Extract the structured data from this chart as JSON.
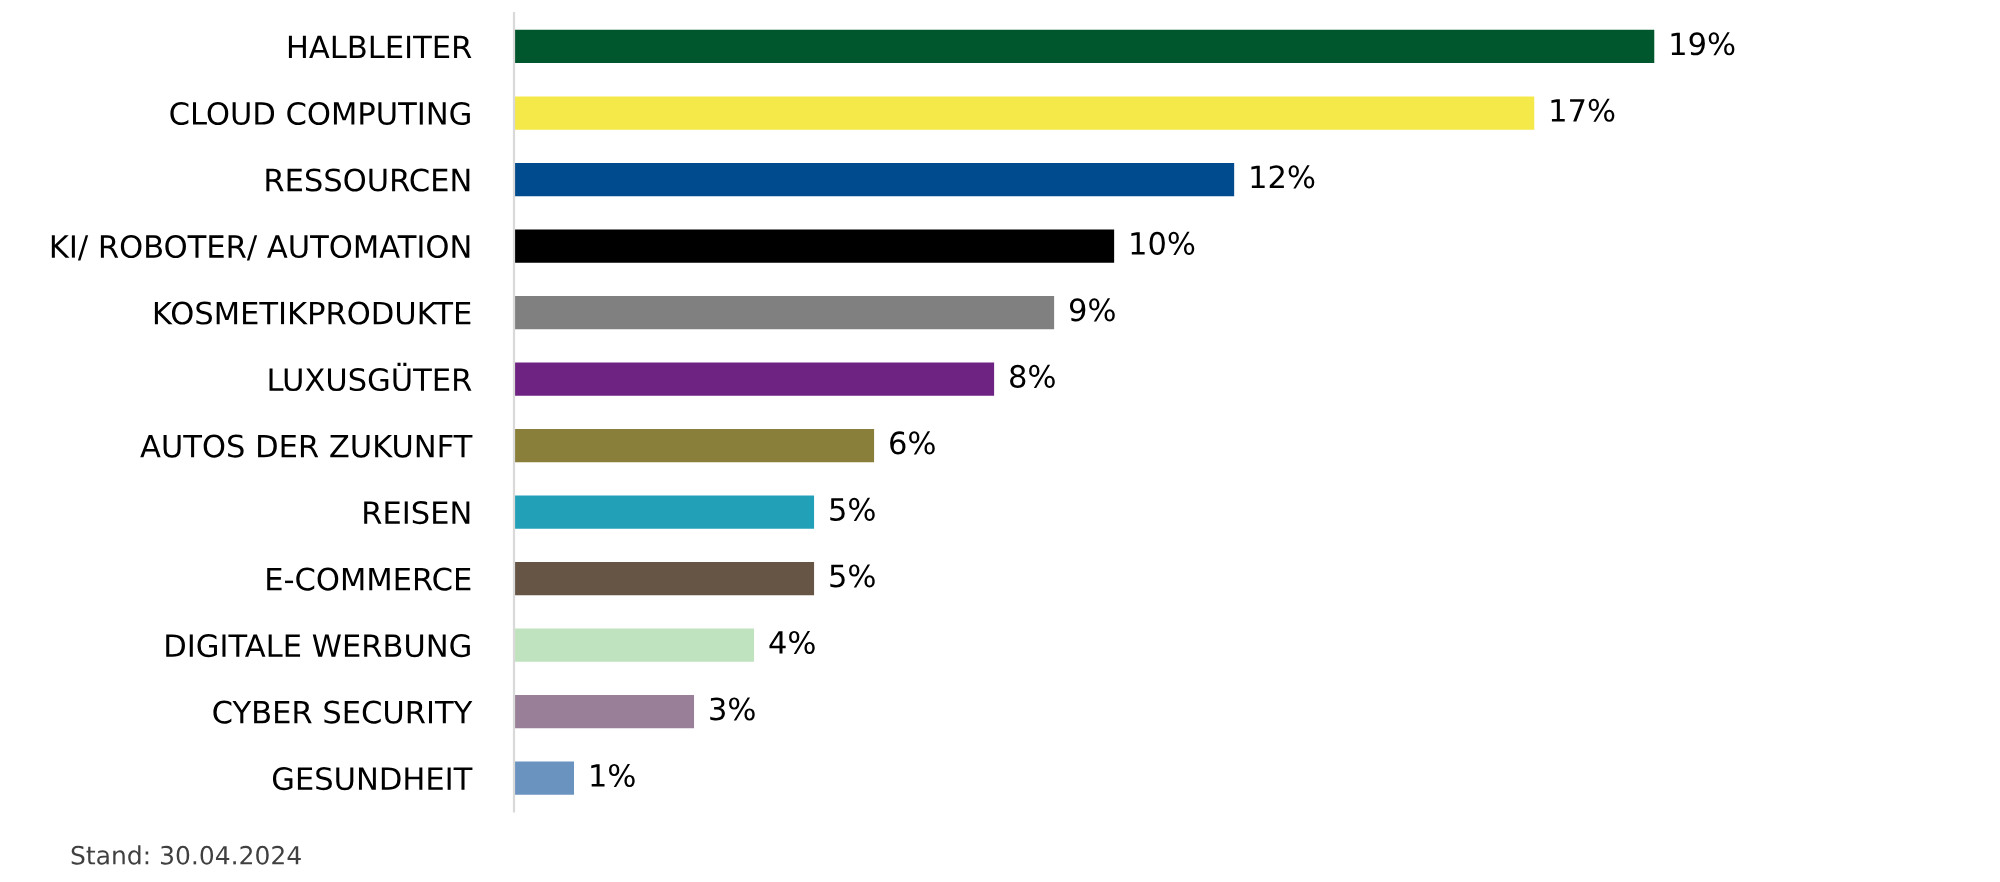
{
  "chart_data": {
    "type": "bar",
    "orientation": "horizontal",
    "categories": [
      "HALBLEITER",
      "CLOUD COMPUTING",
      "RESSOURCEN",
      "KI/ ROBOTER/ AUTOMATION",
      "KOSMETIKPRODUKTE",
      "LUXUSGÜTER",
      "AUTOS DER ZUKUNFT",
      "REISEN",
      "E-COMMERCE",
      "DIGITALE WERBUNG",
      "CYBER SECURITY",
      "GESUNDHEIT"
    ],
    "values": [
      19,
      17,
      12,
      10,
      9,
      8,
      6,
      5,
      5,
      4,
      3,
      1
    ],
    "value_labels": [
      "19%",
      "17%",
      "12%",
      "10%",
      "9%",
      "8%",
      "6%",
      "5%",
      "5%",
      "4%",
      "3%",
      "1%"
    ],
    "colors": [
      "#00572d",
      "#f5e94a",
      "#004b8d",
      "#000000",
      "#808080",
      "#6e2383",
      "#8a7f3a",
      "#22a0b8",
      "#665544",
      "#bfe3be",
      "#9a7f99",
      "#6a93c0"
    ],
    "grid": false,
    "legend": false,
    "annotations": [
      "Stand: 30.04.2024"
    ]
  }
}
